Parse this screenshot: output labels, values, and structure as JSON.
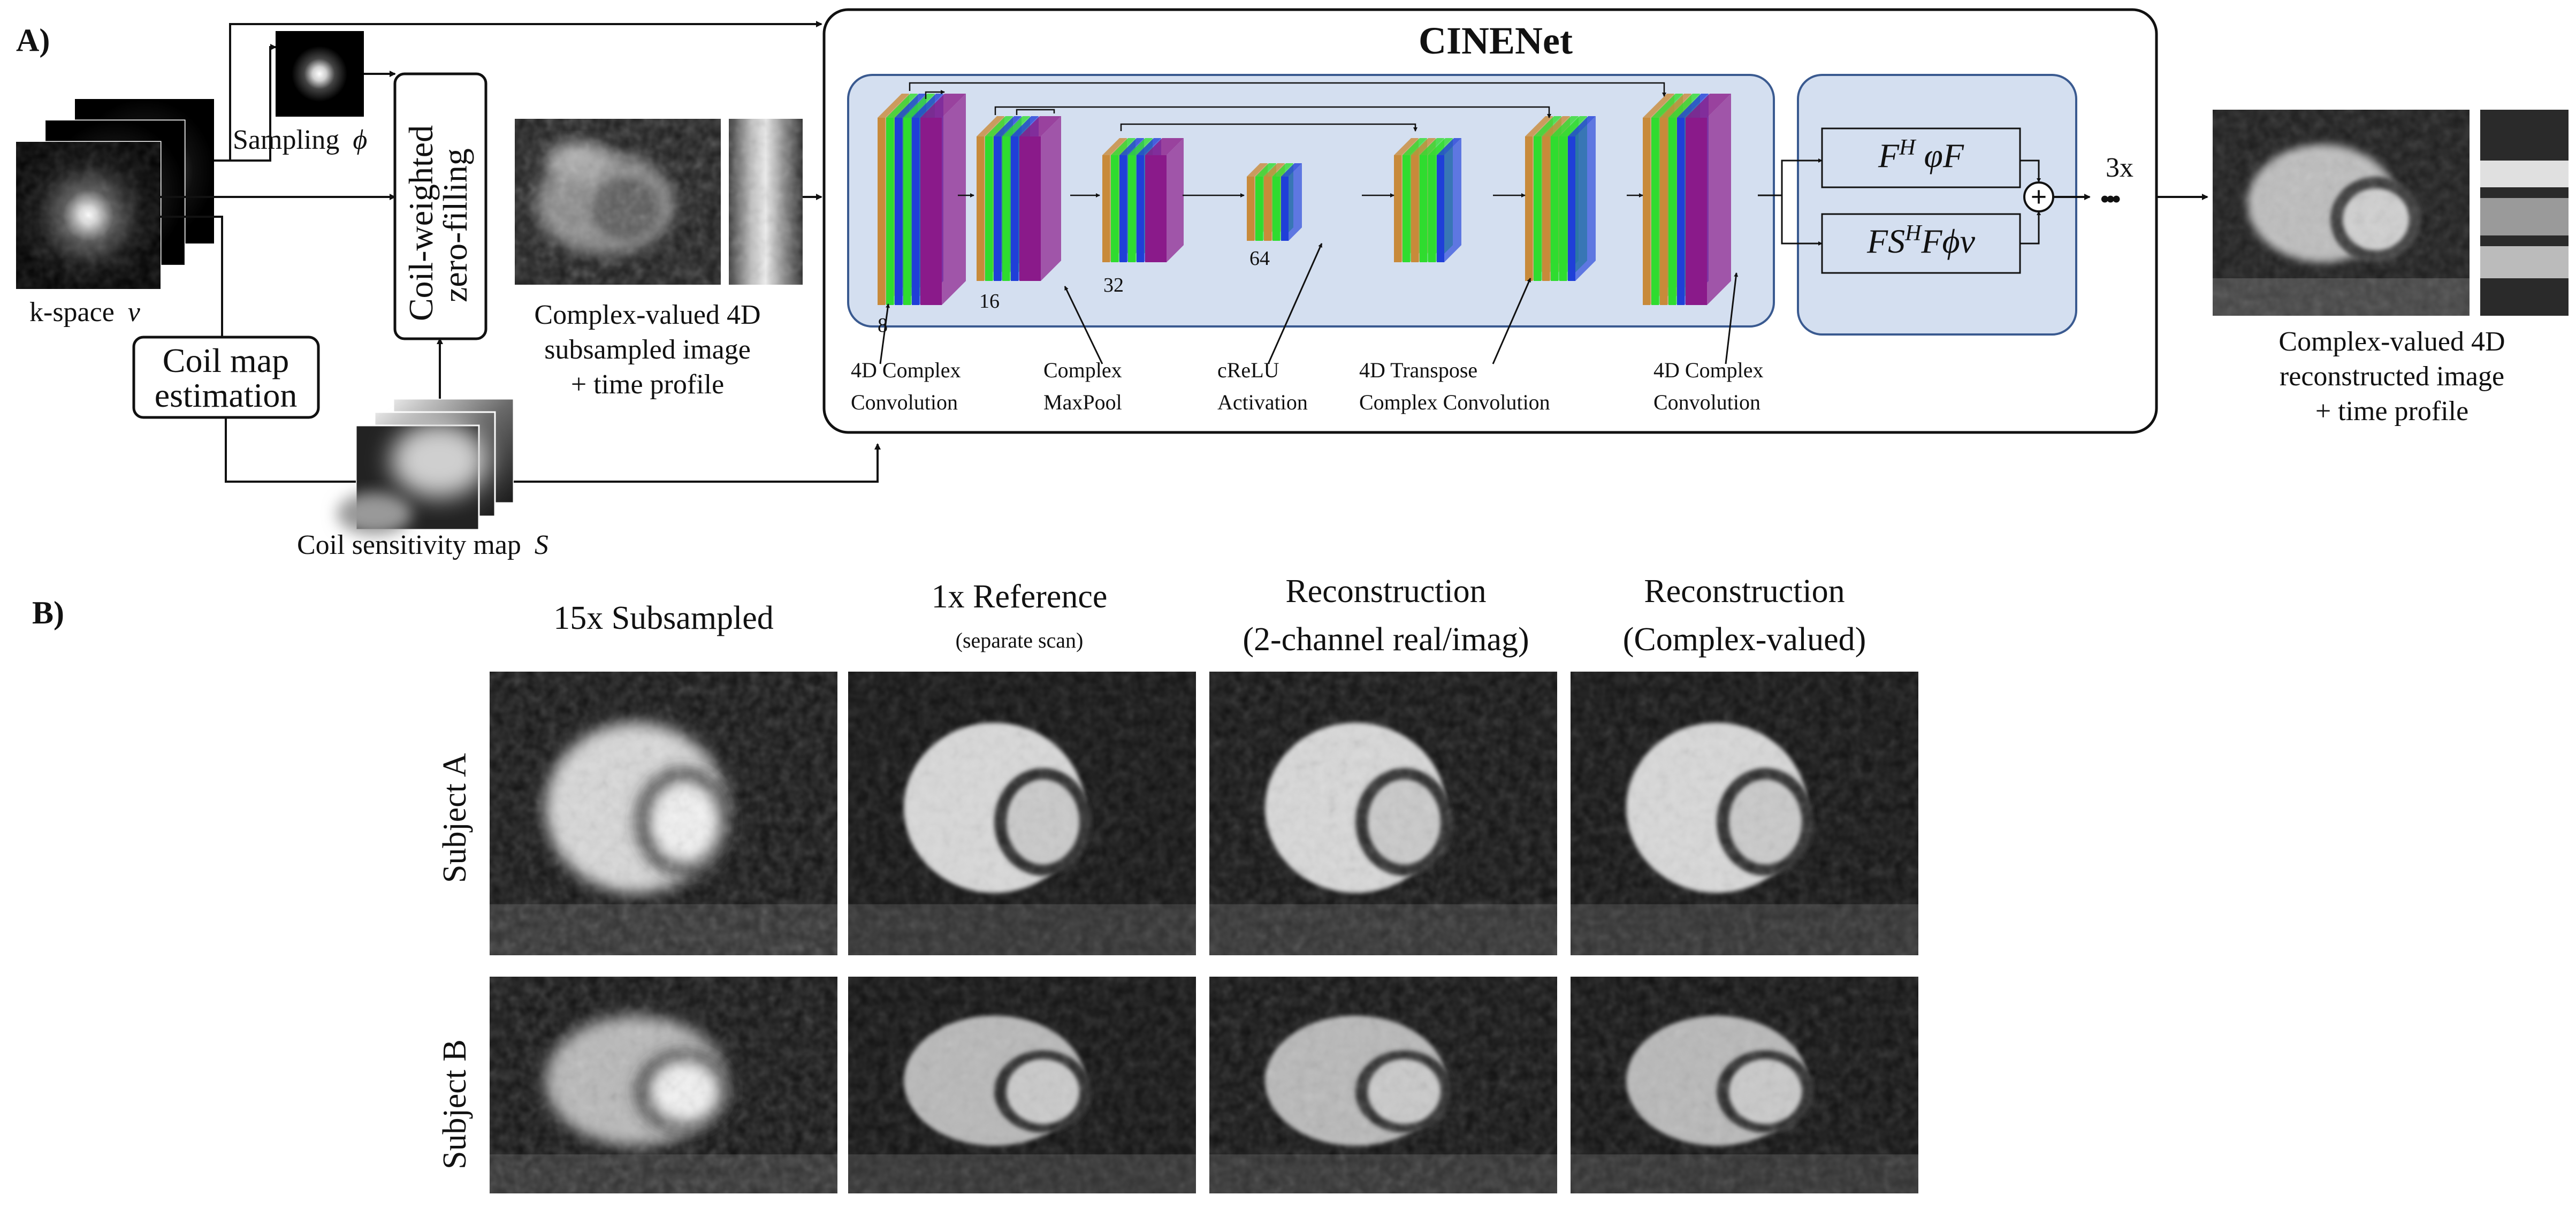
{
  "panel_a": {
    "label": "A)",
    "kspace_label": "k-space",
    "kspace_symbol": "ν",
    "sampling_label": "Sampling",
    "sampling_symbol": "ϕ",
    "zero_fill_line1": "Coil-weighted",
    "zero_fill_line2": "zero-filling",
    "coil_map_line1": "Coil map",
    "coil_map_line2": "estimation",
    "coil_sens_label": "Coil sensitivity map",
    "coil_sens_symbol": "S",
    "subsampled_line1": "Complex-valued 4D",
    "subsampled_line2": "subsampled image",
    "subsampled_line3": "+ time profile",
    "network_title": "CINENet",
    "channels": [
      "8",
      "16",
      "32",
      "64"
    ],
    "layer_labels": [
      {
        "line1": "4D Complex",
        "line2": "Convolution"
      },
      {
        "line1": "Complex",
        "line2": "MaxPool"
      },
      {
        "line1": "cReLU",
        "line2": "Activation"
      },
      {
        "line1": "4D Transpose",
        "line2": "Complex Convolution"
      },
      {
        "line1": "4D Complex",
        "line2": "Convolution"
      }
    ],
    "dc_top_formula": "F^H φF",
    "dc_bottom_formula": "FS^H Fϕν",
    "plus_symbol": "+",
    "iterations": "3x",
    "dots": "•••",
    "recon_line1": "Complex-valued 4D",
    "recon_line2": "reconstructed image",
    "recon_line3": "+ time profile"
  },
  "panel_b": {
    "label": "B)",
    "columns": [
      {
        "title": "15x Subsampled",
        "subtitle": ""
      },
      {
        "title": "1x Reference",
        "subtitle": "(separate scan)"
      },
      {
        "title": "Reconstruction",
        "subtitle": "(2-channel real/imag)"
      },
      {
        "title": "Reconstruction",
        "subtitle": "(Complex-valued)"
      }
    ],
    "rows": [
      "Subject A",
      "Subject B"
    ]
  },
  "colors": {
    "network_bg": "#d4dff0",
    "network_border": "#3a5a90",
    "layer_orange": "#c88a3a",
    "layer_green": "#2fdc2f",
    "layer_blue": "#1f3fd8",
    "layer_purple": "#8a1a8a"
  }
}
